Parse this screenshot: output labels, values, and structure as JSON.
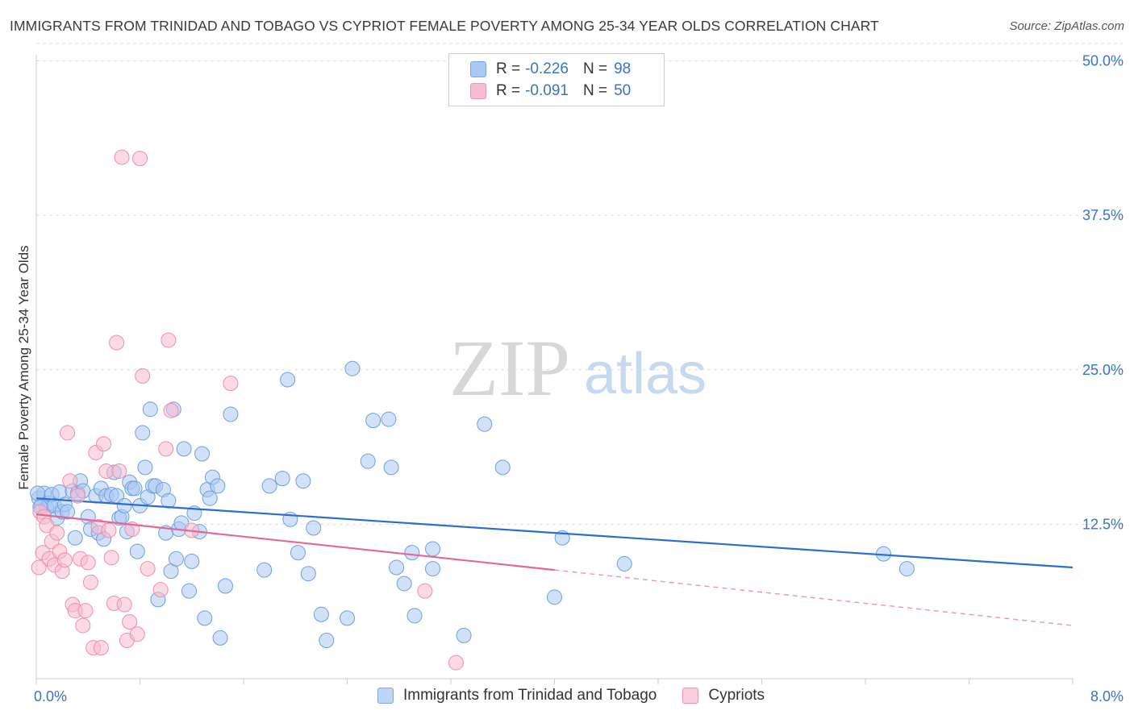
{
  "title": "IMMIGRANTS FROM TRINIDAD AND TOBAGO VS CYPRIOT FEMALE POVERTY AMONG 25-34 YEAR OLDS CORRELATION CHART",
  "source": "Source: ZipAtlas.com",
  "watermark": {
    "zip": "ZIP",
    "atlas": "atlas"
  },
  "legend": {
    "r_label": "R =",
    "n_label": "N =",
    "rows": [
      {
        "r": "-0.226",
        "n": "98",
        "color": "#a9c9f3",
        "border": "#7aa8e6"
      },
      {
        "r": "-0.091",
        "n": "50",
        "color": "#f7bccd",
        "border": "#ee93ae"
      }
    ]
  },
  "bottom_legend": [
    "Immigrants from Trinidad and Tobago",
    "Cypriots"
  ],
  "chart_data": {
    "type": "scatter",
    "title": "IMMIGRANTS FROM TRINIDAD AND TOBAGO VS CYPRIOT FEMALE POVERTY AMONG 25-34 YEAR OLDS CORRELATION CHART",
    "xlabel": "",
    "ylabel": "Female Poverty Among 25-34 Year Olds",
    "xlim": [
      0,
      8
    ],
    "ylim": [
      0,
      52.5
    ],
    "x_tick_labels": [
      "0.0%",
      "8.0%"
    ],
    "y_ticks": [
      12.5,
      25,
      37.5,
      50
    ],
    "y_tick_labels": [
      "12.5%",
      "25.0%",
      "37.5%",
      "50.0%"
    ],
    "grid": true,
    "legend_position": "top-center",
    "series": [
      {
        "name": "Immigrants from Trinidad and Tobago",
        "color": "#a9c9f3",
        "stroke": "#6e9fe0",
        "trend": {
          "x": [
            0,
            8
          ],
          "y": [
            14.6,
            9.0
          ],
          "color": "#2a6fcc"
        },
        "points": [
          [
            0.02,
            14.6
          ],
          [
            0.04,
            14.0
          ],
          [
            0.06,
            15.0
          ],
          [
            0.08,
            13.8
          ],
          [
            0.1,
            14.2
          ],
          [
            0.12,
            14.9
          ],
          [
            0.14,
            14.0
          ],
          [
            0.16,
            13.0
          ],
          [
            0.18,
            15.1
          ],
          [
            0.2,
            13.5
          ],
          [
            0.22,
            14.1
          ],
          [
            0.24,
            13.5
          ],
          [
            0.28,
            15.2
          ],
          [
            0.3,
            11.4
          ],
          [
            0.32,
            15.0
          ],
          [
            0.34,
            16.0
          ],
          [
            0.36,
            15.2
          ],
          [
            0.4,
            13.1
          ],
          [
            0.42,
            12.1
          ],
          [
            0.46,
            14.8
          ],
          [
            0.48,
            11.8
          ],
          [
            0.5,
            15.4
          ],
          [
            0.52,
            11.3
          ],
          [
            0.54,
            14.8
          ],
          [
            0.58,
            14.9
          ],
          [
            0.6,
            16.7
          ],
          [
            0.62,
            14.8
          ],
          [
            0.64,
            13.0
          ],
          [
            0.66,
            13.1
          ],
          [
            0.68,
            14.0
          ],
          [
            0.7,
            11.9
          ],
          [
            0.72,
            15.9
          ],
          [
            0.74,
            15.4
          ],
          [
            0.76,
            15.4
          ],
          [
            0.78,
            10.3
          ],
          [
            0.8,
            14.0
          ],
          [
            0.82,
            19.9
          ],
          [
            0.84,
            17.1
          ],
          [
            0.86,
            14.7
          ],
          [
            0.88,
            21.8
          ],
          [
            0.9,
            15.6
          ],
          [
            0.92,
            15.6
          ],
          [
            0.94,
            6.4
          ],
          [
            0.98,
            15.3
          ],
          [
            1.0,
            11.8
          ],
          [
            1.02,
            14.4
          ],
          [
            1.04,
            8.7
          ],
          [
            1.06,
            21.8
          ],
          [
            1.08,
            9.7
          ],
          [
            1.1,
            12.1
          ],
          [
            1.12,
            12.6
          ],
          [
            1.14,
            18.6
          ],
          [
            1.18,
            7.1
          ],
          [
            1.2,
            9.5
          ],
          [
            1.22,
            13.4
          ],
          [
            1.26,
            11.9
          ],
          [
            1.28,
            18.2
          ],
          [
            1.3,
            4.9
          ],
          [
            1.32,
            15.3
          ],
          [
            1.34,
            14.6
          ],
          [
            1.36,
            16.3
          ],
          [
            1.4,
            15.6
          ],
          [
            1.42,
            3.3
          ],
          [
            1.46,
            7.5
          ],
          [
            1.5,
            21.4
          ],
          [
            1.76,
            8.8
          ],
          [
            1.8,
            15.6
          ],
          [
            1.9,
            16.2
          ],
          [
            1.94,
            24.2
          ],
          [
            1.96,
            12.9
          ],
          [
            2.02,
            10.2
          ],
          [
            2.06,
            16.0
          ],
          [
            2.1,
            8.5
          ],
          [
            2.14,
            12.2
          ],
          [
            2.2,
            5.2
          ],
          [
            2.24,
            3.1
          ],
          [
            2.4,
            4.9
          ],
          [
            2.44,
            25.1
          ],
          [
            2.56,
            17.6
          ],
          [
            2.6,
            20.9
          ],
          [
            2.72,
            21.0
          ],
          [
            2.74,
            17.1
          ],
          [
            2.78,
            9.0
          ],
          [
            2.84,
            7.7
          ],
          [
            2.9,
            10.2
          ],
          [
            2.92,
            5.1
          ],
          [
            3.06,
            10.5
          ],
          [
            3.06,
            8.9
          ],
          [
            3.3,
            3.5
          ],
          [
            3.46,
            20.6
          ],
          [
            3.6,
            17.1
          ],
          [
            4.0,
            6.6
          ],
          [
            4.06,
            11.4
          ],
          [
            4.54,
            9.3
          ],
          [
            6.54,
            10.1
          ],
          [
            6.72,
            8.9
          ],
          [
            0.01,
            15.0
          ],
          [
            0.03,
            13.9
          ]
        ]
      },
      {
        "name": "Cypriots",
        "color": "#f7bccd",
        "stroke": "#ec8fab",
        "trend": {
          "x": [
            0,
            4.0
          ],
          "y": [
            13.3,
            8.8
          ],
          "color": "#e4679a"
        },
        "trend_dashed": {
          "x": [
            4.0,
            8
          ],
          "y": [
            8.8,
            4.3
          ],
          "color": "#e993b4"
        },
        "points": [
          [
            0.02,
            9.0
          ],
          [
            0.03,
            13.5
          ],
          [
            0.05,
            10.2
          ],
          [
            0.06,
            13.1
          ],
          [
            0.08,
            12.4
          ],
          [
            0.1,
            9.7
          ],
          [
            0.12,
            11.1
          ],
          [
            0.14,
            9.2
          ],
          [
            0.16,
            11.8
          ],
          [
            0.18,
            10.3
          ],
          [
            0.2,
            8.7
          ],
          [
            0.22,
            9.6
          ],
          [
            0.24,
            19.9
          ],
          [
            0.26,
            16.0
          ],
          [
            0.28,
            6.0
          ],
          [
            0.3,
            5.5
          ],
          [
            0.32,
            14.8
          ],
          [
            0.34,
            9.7
          ],
          [
            0.36,
            4.3
          ],
          [
            0.38,
            5.5
          ],
          [
            0.4,
            9.4
          ],
          [
            0.42,
            7.8
          ],
          [
            0.44,
            2.5
          ],
          [
            0.46,
            18.3
          ],
          [
            0.48,
            12.3
          ],
          [
            0.5,
            2.5
          ],
          [
            0.52,
            19.0
          ],
          [
            0.54,
            16.8
          ],
          [
            0.56,
            12.0
          ],
          [
            0.58,
            9.8
          ],
          [
            0.6,
            6.1
          ],
          [
            0.62,
            27.2
          ],
          [
            0.64,
            16.8
          ],
          [
            0.66,
            42.2
          ],
          [
            0.68,
            6.0
          ],
          [
            0.7,
            3.1
          ],
          [
            0.72,
            4.6
          ],
          [
            0.74,
            12.1
          ],
          [
            0.78,
            3.6
          ],
          [
            0.8,
            42.1
          ],
          [
            0.82,
            24.5
          ],
          [
            0.86,
            8.9
          ],
          [
            0.96,
            7.2
          ],
          [
            1.0,
            18.6
          ],
          [
            1.02,
            27.4
          ],
          [
            1.04,
            21.7
          ],
          [
            1.2,
            12.0
          ],
          [
            1.5,
            23.9
          ],
          [
            3.0,
            7.1
          ],
          [
            3.24,
            1.3
          ]
        ]
      }
    ]
  }
}
